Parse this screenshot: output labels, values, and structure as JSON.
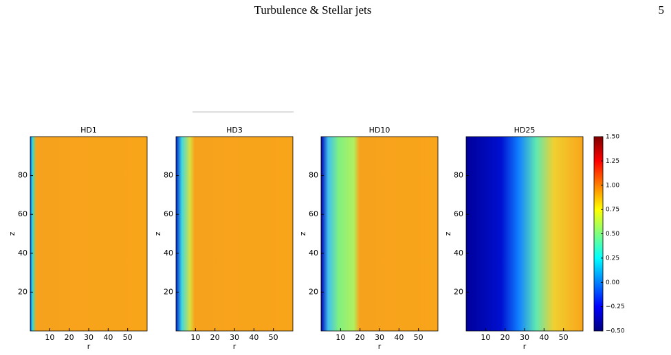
{
  "header": {
    "title": "Turbulence & Stellar jets",
    "page": "5"
  },
  "figure": {
    "panels": [
      {
        "title": "HD1"
      },
      {
        "title": "HD3"
      },
      {
        "title": "HD10"
      },
      {
        "title": "HD25"
      }
    ],
    "x_label": "r",
    "y_label": "z",
    "xlim": [
      0,
      60
    ],
    "xticks": [
      10,
      20,
      30,
      40,
      50
    ],
    "ylim": [
      0,
      100
    ],
    "yticks": [
      20,
      40,
      60,
      80
    ],
    "colorbar": {
      "lim": [
        -0.5,
        1.5
      ],
      "ticks": [
        {
          "value": 1.5,
          "label": "1.50"
        },
        {
          "value": 1.25,
          "label": "1.25"
        },
        {
          "value": 1.0,
          "label": "1.00"
        },
        {
          "value": 0.75,
          "label": "0.75"
        },
        {
          "value": 0.5,
          "label": "0.50"
        },
        {
          "value": 0.25,
          "label": "0.25"
        },
        {
          "value": 0.0,
          "label": "0.00"
        },
        {
          "value": -0.25,
          "label": "−0.25"
        },
        {
          "value": -0.5,
          "label": "−0.50"
        }
      ]
    }
  }
}
